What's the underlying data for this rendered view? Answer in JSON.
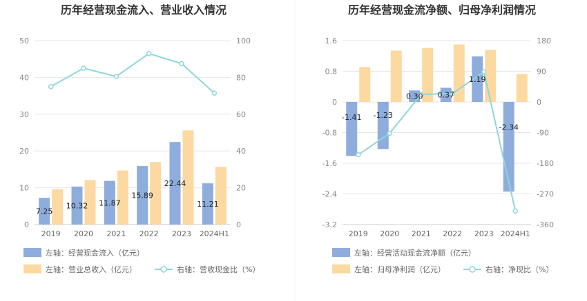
{
  "chart_data": [
    {
      "type": "bar",
      "title": "历年经营现金流入、营业收入情况",
      "categories": [
        "2019",
        "2020",
        "2021",
        "2022",
        "2023",
        "2024H1"
      ],
      "y_left": {
        "ticks": [
          "0",
          "10",
          "20",
          "30",
          "40",
          "50"
        ],
        "lim": [
          0,
          50
        ]
      },
      "y_right": {
        "ticks": [
          "0",
          "20",
          "40",
          "60",
          "80",
          "100"
        ],
        "lim": [
          0,
          100
        ]
      },
      "series": [
        {
          "name": "左轴：经营现金流入（亿元）",
          "kind": "bar",
          "axis": "left",
          "color": "#8eaddc",
          "values": [
            7.25,
            10.32,
            11.87,
            15.89,
            22.44,
            11.21
          ],
          "labels": [
            "7.25",
            "10.32",
            "11.87",
            "15.89",
            "22.44",
            "11.21"
          ]
        },
        {
          "name": "左轴：营业总收入（亿元）",
          "kind": "bar",
          "axis": "left",
          "color": "#fcd9a0",
          "values": [
            9.6,
            12.1,
            14.7,
            17.0,
            25.6,
            15.7
          ]
        },
        {
          "name": "右轴：营收现金比（%）",
          "kind": "line",
          "axis": "right",
          "color": "#8dd6db",
          "values": [
            75,
            85,
            80.5,
            93,
            87.5,
            71.5
          ]
        }
      ],
      "grid": true,
      "legend_position": "bottom"
    },
    {
      "type": "bar",
      "title": "历年经营现金流净额、归母净利润情况",
      "categories": [
        "2019",
        "2020",
        "2021",
        "2022",
        "2023",
        "2024H1"
      ],
      "y_left": {
        "ticks": [
          "-3.2",
          "-2.4",
          "-1.6",
          "-0.8",
          "0",
          "0.8",
          "1.6"
        ],
        "lim": [
          -3.2,
          1.6
        ]
      },
      "y_right": {
        "ticks": [
          "-360",
          "-270",
          "-180",
          "-90",
          "0",
          "90",
          "180"
        ],
        "lim": [
          -360,
          180
        ]
      },
      "series": [
        {
          "name": "左轴：经营活动现金流净额（亿元）",
          "kind": "bar",
          "axis": "left",
          "color": "#8eaddc",
          "values": [
            -1.41,
            -1.23,
            0.3,
            0.37,
            1.19,
            -2.34
          ],
          "labels": [
            "-1.41",
            "-1.23",
            "0.30",
            "0.37",
            "1.19",
            "-2.34"
          ]
        },
        {
          "name": "左轴：归母净利润（亿元）",
          "kind": "bar",
          "axis": "left",
          "color": "#fcd9a0",
          "values": [
            0.91,
            1.34,
            1.41,
            1.5,
            1.36,
            0.73
          ]
        },
        {
          "name": "右轴：净现比（%）",
          "kind": "line",
          "axis": "right",
          "color": "#8dd6db",
          "values": [
            -155,
            -92,
            22,
            25,
            88,
            -320
          ]
        }
      ],
      "grid": true,
      "legend_position": "bottom"
    }
  ]
}
